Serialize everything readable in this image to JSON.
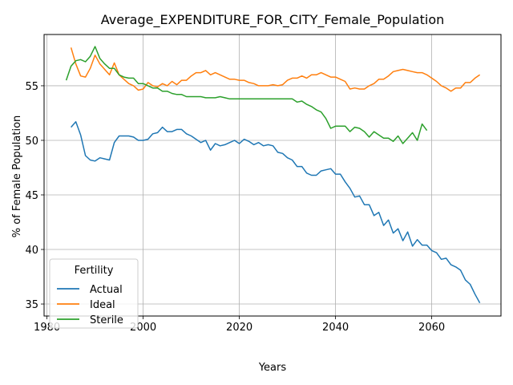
{
  "chart_data": {
    "type": "line",
    "title": "Average_EXPENDITURE_FOR_CITY_Female_Population",
    "xlabel": "Years",
    "ylabel": "% of Female Population",
    "xlim": [
      1979.4,
      2074.4
    ],
    "ylim": [
      33.9,
      59.7
    ],
    "xticks": [
      1980,
      2000,
      2020,
      2040,
      2060
    ],
    "yticks": [
      35,
      40,
      45,
      50,
      55
    ],
    "grid": true,
    "legend": {
      "title": "Fertility",
      "placement": "lower-left"
    },
    "series": [
      {
        "name": "Actual",
        "color": "#1f77b4",
        "x": [
          1985,
          1986,
          1987,
          1988,
          1989,
          1990,
          1991,
          1992,
          1993,
          1994,
          1995,
          1996,
          1997,
          1998,
          1999,
          2000,
          2001,
          2002,
          2003,
          2004,
          2005,
          2006,
          2007,
          2008,
          2009,
          2010,
          2011,
          2012,
          2013,
          2014,
          2015,
          2016,
          2017,
          2018,
          2019,
          2020,
          2021,
          2022,
          2023,
          2024,
          2025,
          2026,
          2027,
          2028,
          2029,
          2030,
          2031,
          2032,
          2033,
          2034,
          2035,
          2036,
          2037,
          2038,
          2039,
          2040,
          2041,
          2042,
          2043,
          2044,
          2045,
          2046,
          2047,
          2048,
          2049,
          2050,
          2051,
          2052,
          2053,
          2054,
          2055,
          2056,
          2057,
          2058,
          2059,
          2060,
          2061,
          2062,
          2063,
          2064,
          2065,
          2066,
          2067,
          2068,
          2069,
          2070
        ],
        "y": [
          51.2,
          51.7,
          50.5,
          48.6,
          48.2,
          48.1,
          48.4,
          48.3,
          48.2,
          49.8,
          50.4,
          50.4,
          50.4,
          50.3,
          50.0,
          50.0,
          50.1,
          50.6,
          50.7,
          51.2,
          50.8,
          50.8,
          51.0,
          51.0,
          50.6,
          50.4,
          50.1,
          49.8,
          50.0,
          49.1,
          49.7,
          49.5,
          49.6,
          49.8,
          50.0,
          49.7,
          50.1,
          49.9,
          49.6,
          49.8,
          49.5,
          49.6,
          49.5,
          48.9,
          48.8,
          48.4,
          48.2,
          47.6,
          47.6,
          47.0,
          46.8,
          46.8,
          47.2,
          47.3,
          47.4,
          46.9,
          46.9,
          46.2,
          45.6,
          44.8,
          44.9,
          44.1,
          44.1,
          43.1,
          43.4,
          42.2,
          42.7,
          41.5,
          41.9,
          40.8,
          41.6,
          40.3,
          40.9,
          40.4,
          40.4,
          39.9,
          39.7,
          39.1,
          39.2,
          38.6,
          38.4,
          38.1,
          37.2,
          36.8,
          35.9,
          35.1
        ]
      },
      {
        "name": "Ideal",
        "color": "#ff7f0e",
        "x": [
          1985,
          1986,
          1987,
          1988,
          1989,
          1990,
          1991,
          1992,
          1993,
          1994,
          1995,
          1996,
          1997,
          1998,
          1999,
          2000,
          2001,
          2002,
          2003,
          2004,
          2005,
          2006,
          2007,
          2008,
          2009,
          2010,
          2011,
          2012,
          2013,
          2014,
          2015,
          2016,
          2017,
          2018,
          2019,
          2020,
          2021,
          2022,
          2023,
          2024,
          2025,
          2026,
          2027,
          2028,
          2029,
          2030,
          2031,
          2032,
          2033,
          2034,
          2035,
          2036,
          2037,
          2038,
          2039,
          2040,
          2041,
          2042,
          2043,
          2044,
          2045,
          2046,
          2047,
          2048,
          2049,
          2050,
          2051,
          2052,
          2053,
          2054,
          2055,
          2056,
          2057,
          2058,
          2059,
          2060,
          2061,
          2062,
          2063,
          2064,
          2065,
          2066,
          2067,
          2068,
          2069,
          2070
        ],
        "y": [
          58.5,
          57.0,
          55.9,
          55.8,
          56.6,
          57.8,
          57.0,
          56.5,
          56.0,
          57.1,
          56.0,
          55.6,
          55.2,
          55.0,
          54.6,
          54.7,
          55.3,
          55.0,
          54.9,
          55.2,
          55.0,
          55.4,
          55.1,
          55.5,
          55.5,
          55.9,
          56.2,
          56.2,
          56.4,
          56.0,
          56.2,
          56.0,
          55.8,
          55.6,
          55.6,
          55.5,
          55.5,
          55.3,
          55.2,
          55.0,
          55.0,
          55.0,
          55.1,
          55.0,
          55.1,
          55.5,
          55.7,
          55.7,
          55.9,
          55.7,
          56.0,
          56.0,
          56.2,
          56.0,
          55.8,
          55.8,
          55.6,
          55.4,
          54.7,
          54.8,
          54.7,
          54.7,
          55.0,
          55.2,
          55.6,
          55.6,
          55.9,
          56.3,
          56.4,
          56.5,
          56.4,
          56.3,
          56.2,
          56.2,
          56.0,
          55.7,
          55.4,
          55.0,
          54.8,
          54.5,
          54.8,
          54.8,
          55.3,
          55.3,
          55.7,
          56.0
        ]
      },
      {
        "name": "Sterile",
        "color": "#2ca02c",
        "x": [
          1984,
          1985,
          1986,
          1987,
          1988,
          1989,
          1990,
          1991,
          1992,
          1993,
          1994,
          1995,
          1996,
          1997,
          1998,
          1999,
          2000,
          2001,
          2002,
          2003,
          2004,
          2005,
          2006,
          2007,
          2008,
          2009,
          2010,
          2011,
          2012,
          2013,
          2014,
          2015,
          2016,
          2017,
          2018,
          2019,
          2020,
          2021,
          2022,
          2023,
          2024,
          2025,
          2026,
          2027,
          2028,
          2029,
          2030,
          2031,
          2032,
          2033,
          2034,
          2035,
          2036,
          2037,
          2038,
          2039,
          2040,
          2041,
          2042,
          2043,
          2044,
          2045,
          2046,
          2047,
          2048,
          2049,
          2050,
          2051,
          2052,
          2053,
          2054,
          2055,
          2056,
          2057,
          2058,
          2059
        ],
        "y": [
          55.5,
          56.8,
          57.3,
          57.4,
          57.2,
          57.7,
          58.6,
          57.5,
          57.0,
          56.6,
          56.6,
          56.0,
          55.8,
          55.7,
          55.7,
          55.2,
          55.2,
          55.0,
          54.8,
          54.8,
          54.5,
          54.5,
          54.3,
          54.2,
          54.2,
          54.0,
          54.0,
          54.0,
          54.0,
          53.9,
          53.9,
          53.9,
          54.0,
          53.9,
          53.8,
          53.8,
          53.8,
          53.8,
          53.8,
          53.8,
          53.8,
          53.8,
          53.8,
          53.8,
          53.8,
          53.8,
          53.8,
          53.8,
          53.5,
          53.6,
          53.3,
          53.1,
          52.8,
          52.6,
          52.0,
          51.1,
          51.3,
          51.3,
          51.3,
          50.8,
          51.2,
          51.1,
          50.8,
          50.3,
          50.8,
          50.5,
          50.2,
          50.2,
          49.9,
          50.4,
          49.7,
          50.2,
          50.7,
          50.0,
          51.5,
          50.9
        ]
      }
    ]
  }
}
